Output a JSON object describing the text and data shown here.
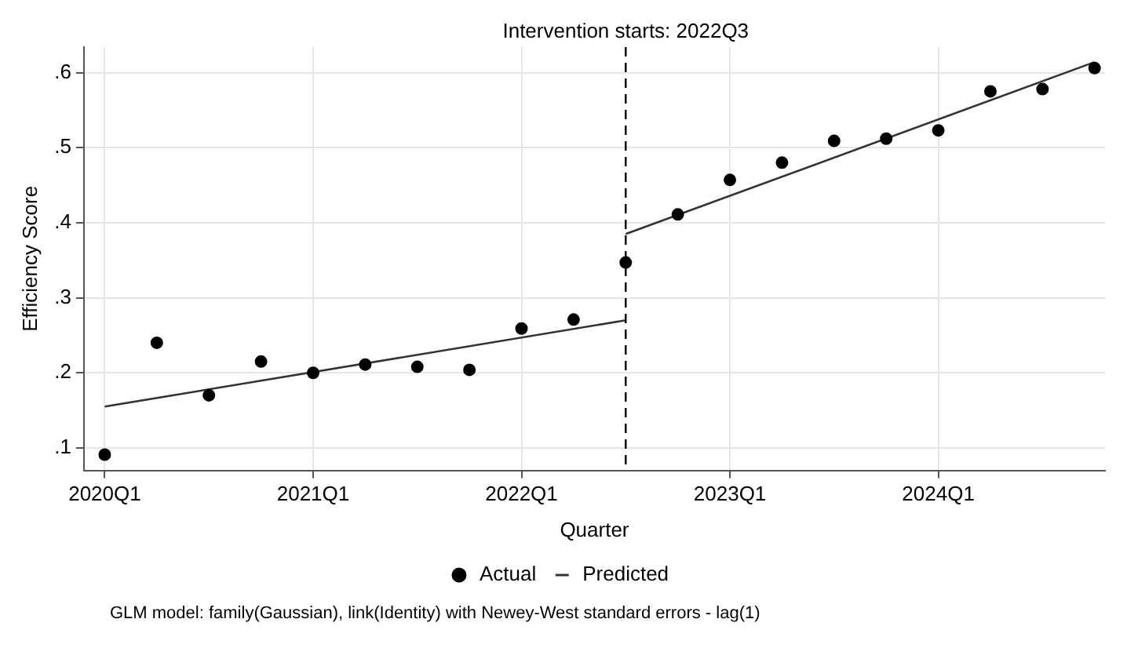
{
  "chart_data": {
    "type": "scatter",
    "xlabel": "Quarter",
    "ylabel": "Efficiency Score",
    "categories": [
      "2020Q1",
      null,
      null,
      null,
      "2021Q1",
      null,
      null,
      null,
      "2022Q1",
      null,
      null,
      null,
      "2023Q1",
      null,
      null,
      null,
      "2024Q1",
      null,
      null,
      null
    ],
    "series": [
      {
        "name": "Actual",
        "color": "#000000",
        "marker": "circle",
        "values": [
          0.091,
          0.24,
          0.17,
          0.215,
          0.2,
          0.211,
          0.208,
          0.204,
          0.259,
          0.271,
          0.347,
          0.411,
          0.457,
          0.48,
          0.509,
          0.512,
          0.523,
          0.575,
          0.578,
          0.606
        ]
      },
      {
        "name": "Predicted",
        "type": "line",
        "color": "#333333",
        "marker": "none",
        "line_style": "solid",
        "values": [
          0.155,
          null,
          null,
          null,
          null,
          null,
          null,
          null,
          null,
          null,
          0.27,
          null,
          null,
          null,
          null,
          null,
          null,
          null,
          null,
          null
        ]
      },
      {
        "type": "line",
        "color": "#333333",
        "marker": "none",
        "line_style": "solid",
        "values": [
          null,
          null,
          null,
          null,
          null,
          null,
          null,
          null,
          null,
          null,
          0.385,
          null,
          null,
          null,
          null,
          null,
          null,
          null,
          null,
          0.614
        ]
      }
    ],
    "ylim": [
      0.07,
      0.634
    ],
    "yticks": [
      {
        "value": 0.1,
        "label": ".1"
      },
      {
        "value": 0.2,
        "label": ".2"
      },
      {
        "value": 0.3,
        "label": ".3"
      },
      {
        "value": 0.4,
        "label": ".4"
      },
      {
        "value": 0.5,
        "label": ".5"
      },
      {
        "value": 0.6,
        "label": ".6"
      }
    ],
    "ref_lines": [
      {
        "axis": "x",
        "value": "2022Q3",
        "label": "Intervention starts:",
        "color": "#000000",
        "line_style": "dashed"
      }
    ],
    "grid": true,
    "legend": "bottom",
    "annotations": [
      "GLM model: family(Gaussian), link(Identity) with Newey-West standard errors - lag(1)"
    ]
  }
}
